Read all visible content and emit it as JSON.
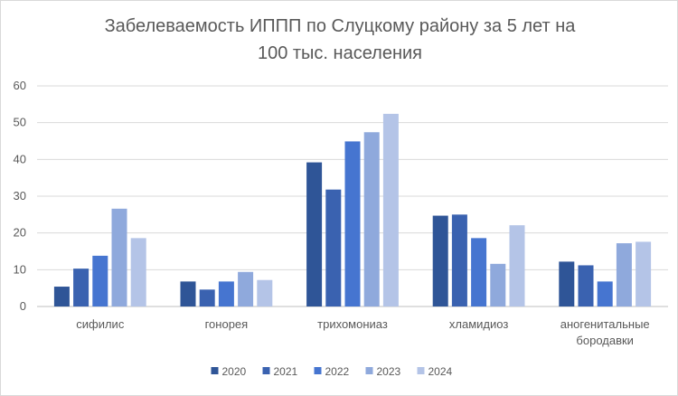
{
  "chart_data": {
    "type": "bar",
    "title": [
      "Забелеваемость ИППП по Слуцкому району за 5 лет на",
      "100 тыс. населения"
    ],
    "categories": [
      [
        "сифилис"
      ],
      [
        "гонорея"
      ],
      [
        "трихомониаз"
      ],
      [
        "хламидиоз"
      ],
      [
        "аногенитальные",
        "бородавки"
      ]
    ],
    "series": [
      {
        "name": "2020",
        "color": "#2f5597",
        "values": [
          5.4,
          6.8,
          39.2,
          24.7,
          12.2
        ]
      },
      {
        "name": "2021",
        "color": "#3a62b0",
        "values": [
          10.3,
          4.6,
          31.8,
          25.0,
          11.2
        ]
      },
      {
        "name": "2022",
        "color": "#4675d0",
        "values": [
          13.8,
          6.8,
          44.9,
          18.6,
          6.8
        ]
      },
      {
        "name": "2023",
        "color": "#8fa9dc",
        "values": [
          26.6,
          9.4,
          47.4,
          11.6,
          17.2
        ]
      },
      {
        "name": "2024",
        "color": "#b4c4e7",
        "values": [
          18.6,
          7.2,
          52.4,
          22.1,
          17.6
        ]
      }
    ],
    "ylim": [
      0,
      60
    ],
    "yticks": [
      "0",
      "10",
      "20",
      "30",
      "40",
      "50",
      "60"
    ],
    "grid": true,
    "legend_position": "bottom"
  }
}
